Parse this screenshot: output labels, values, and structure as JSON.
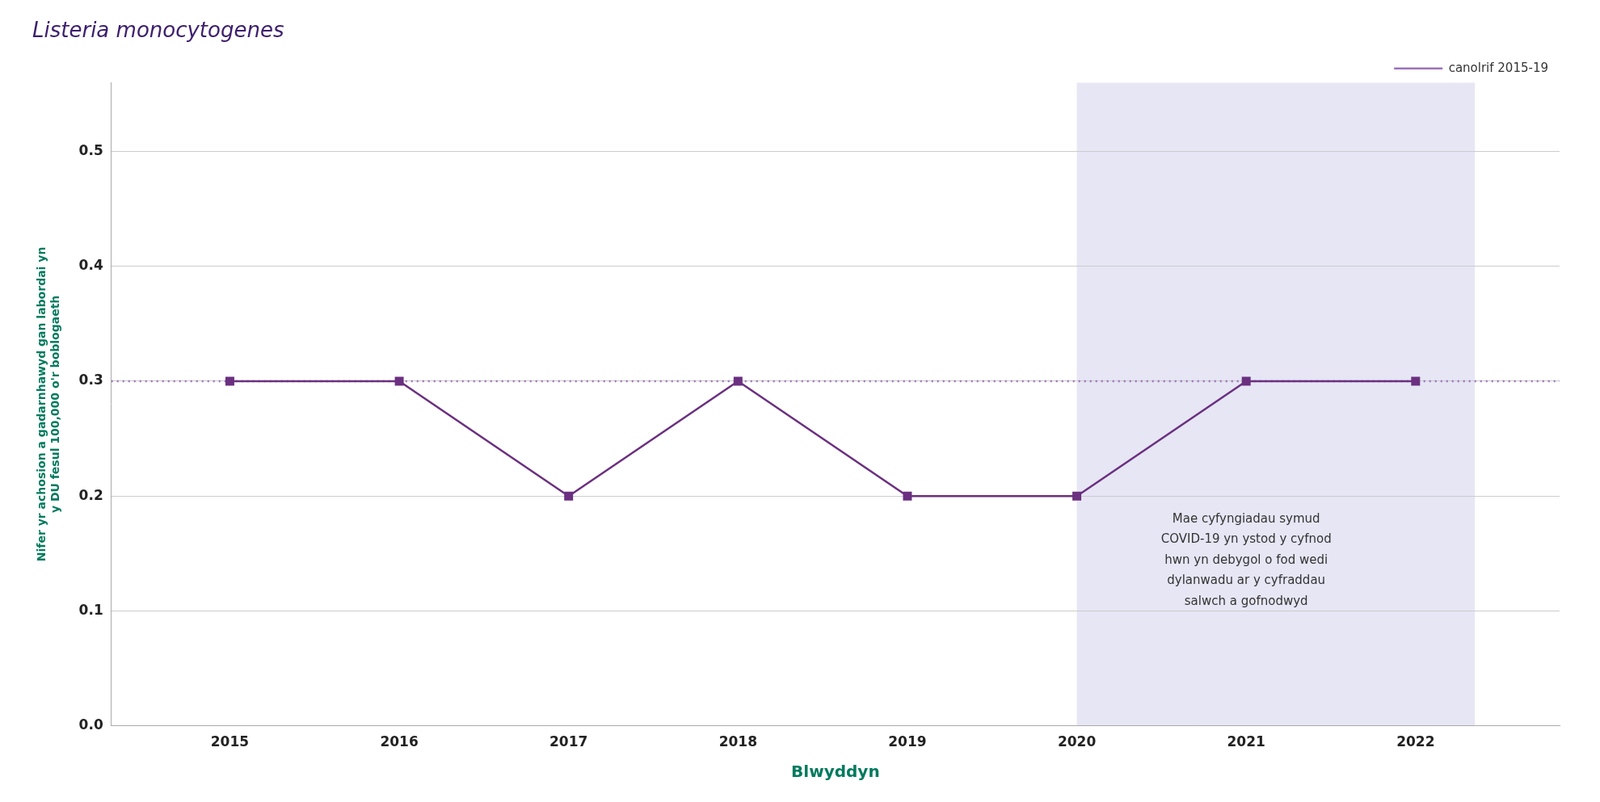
{
  "chart_data": {
    "type": "line",
    "title": "Listeria monocytogenes",
    "x_label": "Blwyddyn",
    "y_label": "Nifer yr achosion a gadarnhawyd gan labordai yn\ny DU fesul 100,000 o'r boblogaeth",
    "x": [
      2015,
      2016,
      2017,
      2018,
      2019,
      2020,
      2021,
      2022
    ],
    "series": [
      {
        "values": [
          0.3,
          0.3,
          0.2,
          0.3,
          0.2,
          0.2,
          0.3,
          0.3
        ],
        "color": "#6B3080",
        "marker": "square",
        "line_style": "solid"
      }
    ],
    "reference_lines": [
      {
        "name": "canolrif 2015-19",
        "y": 0.3,
        "color": "#9B72BB",
        "line_style": "dotted"
      }
    ],
    "shaded_regions": [
      {
        "x": [
          2020,
          2022.35
        ],
        "color": "#E6E6F5"
      }
    ],
    "annotations": [
      {
        "text": "Mae cyfyngiadau symud\nCOVID-19 yn ystod y cyfnod\nhwn yn debygol o fod wedi\ndylanwadu ar y cyfraddau\nsalwch a gofnodwyd",
        "x": 2021.0,
        "y": 0.185
      }
    ],
    "xlim": [
      2014.3,
      2022.85
    ],
    "xticks": [
      2015,
      2016,
      2017,
      2018,
      2019,
      2020,
      2021,
      2022
    ],
    "ylim": [
      0.0,
      0.56
    ],
    "yticks": [
      {
        "value": 0.0,
        "label": "0.0"
      },
      0.1,
      0.2,
      0.3,
      0.4,
      0.5
    ],
    "grid": "y",
    "legend": "upper right"
  }
}
